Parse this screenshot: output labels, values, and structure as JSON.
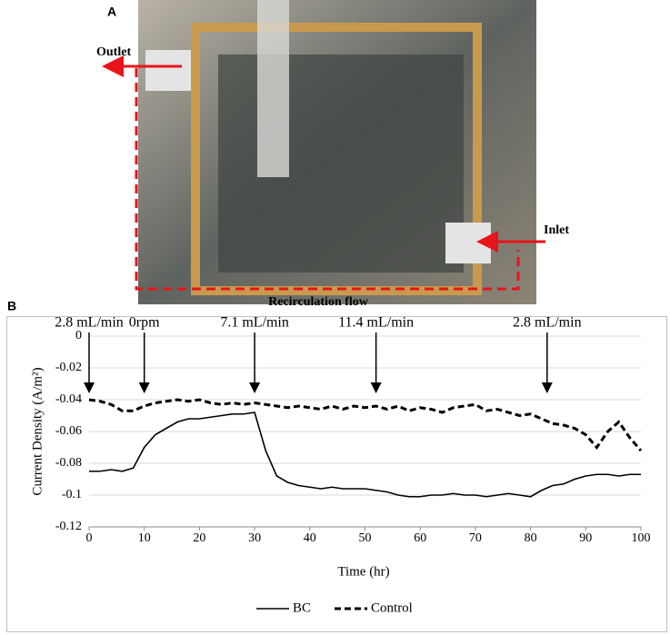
{
  "panel_a": {
    "label": "A",
    "outlet": "Outlet",
    "inlet": "Inlet",
    "flow": "Recirculation flow"
  },
  "chart_data": {
    "type": "line",
    "panel_label": "B",
    "x_label": "Time (hr)",
    "y_label": "Current Density (A/m²)",
    "xlim": [
      0,
      100
    ],
    "xticks": [
      0,
      10,
      20,
      30,
      40,
      50,
      60,
      70,
      80,
      90,
      100
    ],
    "ylim": [
      -0.12,
      0
    ],
    "yticks": [
      0,
      -0.02,
      -0.04,
      -0.06,
      -0.08,
      -0.1,
      -0.12
    ],
    "grid": true,
    "legend": "bottom",
    "annotations": [
      {
        "text": "2.8 mL/min",
        "x": 0
      },
      {
        "text": "0rpm",
        "x": 10
      },
      {
        "text": "7.1 mL/min",
        "x": 30
      },
      {
        "text": "11.4 mL/min",
        "x": 52
      },
      {
        "text": "2.8 mL/min",
        "x": 83
      }
    ],
    "x": [
      0,
      2,
      4,
      6,
      8,
      10,
      12,
      14,
      16,
      18,
      20,
      22,
      24,
      26,
      28,
      30,
      32,
      34,
      36,
      38,
      40,
      42,
      44,
      46,
      48,
      50,
      52,
      54,
      56,
      58,
      60,
      62,
      64,
      66,
      68,
      70,
      72,
      74,
      76,
      78,
      80,
      82,
      84,
      86,
      88,
      90,
      92,
      94,
      96,
      98,
      100
    ],
    "series": [
      {
        "name": "BC",
        "color": "#000000",
        "dash": "solid",
        "values": [
          -0.085,
          -0.085,
          -0.084,
          -0.085,
          -0.083,
          -0.07,
          -0.062,
          -0.058,
          -0.054,
          -0.052,
          -0.052,
          -0.051,
          -0.05,
          -0.049,
          -0.049,
          -0.048,
          -0.072,
          -0.088,
          -0.092,
          -0.094,
          -0.095,
          -0.096,
          -0.095,
          -0.096,
          -0.096,
          -0.096,
          -0.097,
          -0.098,
          -0.1,
          -0.101,
          -0.101,
          -0.1,
          -0.1,
          -0.099,
          -0.1,
          -0.1,
          -0.101,
          -0.1,
          -0.099,
          -0.1,
          -0.101,
          -0.097,
          -0.094,
          -0.093,
          -0.09,
          -0.088,
          -0.087,
          -0.087,
          -0.088,
          -0.087,
          -0.087
        ]
      },
      {
        "name": "Control",
        "color": "#000000",
        "dash": "dashed",
        "values": [
          -0.04,
          -0.041,
          -0.043,
          -0.047,
          -0.047,
          -0.044,
          -0.042,
          -0.041,
          -0.04,
          -0.041,
          -0.04,
          -0.042,
          -0.043,
          -0.042,
          -0.043,
          -0.042,
          -0.043,
          -0.044,
          -0.045,
          -0.044,
          -0.045,
          -0.046,
          -0.044,
          -0.046,
          -0.044,
          -0.045,
          -0.044,
          -0.046,
          -0.044,
          -0.047,
          -0.045,
          -0.046,
          -0.048,
          -0.045,
          -0.044,
          -0.043,
          -0.047,
          -0.046,
          -0.048,
          -0.05,
          -0.049,
          -0.052,
          -0.055,
          -0.056,
          -0.058,
          -0.062,
          -0.07,
          -0.06,
          -0.054,
          -0.064,
          -0.072
        ]
      }
    ]
  }
}
